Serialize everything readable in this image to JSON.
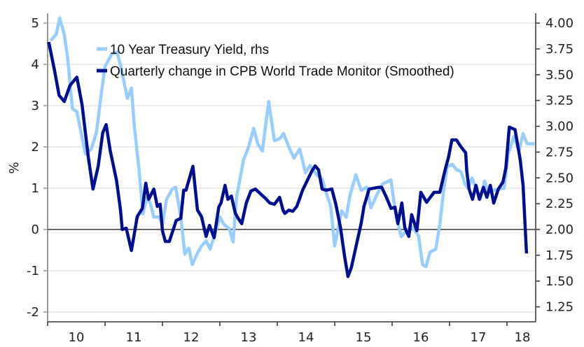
{
  "chart_data": {
    "type": "line",
    "title": "",
    "xlabel": "",
    "ylabel": "%",
    "y2label": "",
    "x_unit": "year (fractional, tick labels are 2-digit years)",
    "xlim": [
      2010.0,
      2018.5
    ],
    "ylim": [
      -2.3,
      5.2
    ],
    "y2lim": [
      1.1,
      4.1
    ],
    "x_tick_labels": [
      "10",
      "11",
      "12",
      "13",
      "14",
      "15",
      "16",
      "17",
      "18"
    ],
    "y_ticks": [
      -2,
      -1,
      0,
      1,
      2,
      3,
      4,
      5
    ],
    "y_tick_labels": [
      "-2",
      "-1",
      "0",
      "1",
      "2",
      "3",
      "4",
      "5"
    ],
    "y2_ticks": [
      1.25,
      1.5,
      1.75,
      2.0,
      2.25,
      2.5,
      2.75,
      3.0,
      3.25,
      3.5,
      3.75,
      4.0
    ],
    "y2_tick_labels": [
      "1.25",
      "1.50",
      "1.75",
      "2.00",
      "2.25",
      "2.50",
      "2.75",
      "3.00",
      "3.25",
      "3.50",
      "3.75",
      "4.00"
    ],
    "grid": true,
    "zero_line": true,
    "legend_position": "top-left",
    "series": [
      {
        "name": "10 Year Treasury Yield, rhs",
        "axis": "right",
        "color": "#99ccff",
        "x": [
          2010.05,
          2010.15,
          2010.21,
          2010.29,
          2010.35,
          2010.43,
          2010.51,
          2010.59,
          2010.66,
          2010.76,
          2010.85,
          2010.94,
          2011.0,
          2011.12,
          2011.21,
          2011.27,
          2011.39,
          2011.46,
          2011.51,
          2011.59,
          2011.66,
          2011.73,
          2011.79,
          2011.85,
          2011.95,
          2012.0,
          2012.07,
          2012.17,
          2012.23,
          2012.32,
          2012.39,
          2012.46,
          2012.52,
          2012.61,
          2012.68,
          2012.76,
          2012.83,
          2012.91,
          2013.0,
          2013.07,
          2013.16,
          2013.23,
          2013.29,
          2013.41,
          2013.5,
          2013.59,
          2013.66,
          2013.74,
          2013.85,
          2013.95,
          2014.04,
          2014.11,
          2014.2,
          2014.29,
          2014.39,
          2014.49,
          2014.57,
          2014.7,
          2014.78,
          2014.85,
          2014.93,
          2015.0,
          2015.12,
          2015.2,
          2015.27,
          2015.37,
          2015.46,
          2015.56,
          2015.63,
          2015.73,
          2015.83,
          2015.98,
          2016.06,
          2016.16,
          2016.24,
          2016.34,
          2016.46,
          2016.53,
          2016.59,
          2016.66,
          2016.76,
          2016.83,
          2016.9,
          2016.96,
          2017.05,
          2017.12,
          2017.2,
          2017.27,
          2017.32,
          2017.39,
          2017.46,
          2017.54,
          2017.61,
          2017.68,
          2017.76,
          2017.85,
          2017.95,
          2018.02,
          2018.12,
          2018.21,
          2018.28,
          2018.35,
          2018.43,
          2018.48
        ],
        "values": [
          3.83,
          3.89,
          4.05,
          3.89,
          3.66,
          3.17,
          3.14,
          2.92,
          2.73,
          2.78,
          2.94,
          3.34,
          3.58,
          3.7,
          3.72,
          3.59,
          3.27,
          3.37,
          3.0,
          2.59,
          2.15,
          2.31,
          2.25,
          2.12,
          2.12,
          2.05,
          2.29,
          2.39,
          2.41,
          2.12,
          1.76,
          1.82,
          1.66,
          1.77,
          1.84,
          1.89,
          1.81,
          1.95,
          2.12,
          2.05,
          2.01,
          1.88,
          2.31,
          2.67,
          2.8,
          2.98,
          2.83,
          2.76,
          3.24,
          2.86,
          2.88,
          2.93,
          2.8,
          2.69,
          2.78,
          2.55,
          2.62,
          2.52,
          2.49,
          2.36,
          2.22,
          1.84,
          2.18,
          2.12,
          2.34,
          2.53,
          2.38,
          2.41,
          2.21,
          2.33,
          2.44,
          2.48,
          2.15,
          1.93,
          1.98,
          2.03,
          1.94,
          1.66,
          1.64,
          1.78,
          1.81,
          2.05,
          2.39,
          2.61,
          2.63,
          2.58,
          2.56,
          2.44,
          2.4,
          2.5,
          2.4,
          2.3,
          2.47,
          2.36,
          2.38,
          2.39,
          2.4,
          2.73,
          2.9,
          2.76,
          2.93,
          2.83,
          2.83,
          2.83
        ]
      },
      {
        "name": "Quarterly change in CPB World Trade Monitor (Smoothed)",
        "axis": "left",
        "color": "#000f8f",
        "x": [
          2010.02,
          2010.12,
          2010.2,
          2010.29,
          2010.39,
          2010.51,
          2010.6,
          2010.71,
          2010.79,
          2010.88,
          2010.96,
          2011.02,
          2011.09,
          2011.2,
          2011.27,
          2011.3,
          2011.37,
          2011.46,
          2011.52,
          2011.56,
          2011.65,
          2011.71,
          2011.76,
          2011.85,
          2011.91,
          2011.96,
          2012.0,
          2012.05,
          2012.12,
          2012.2,
          2012.24,
          2012.32,
          2012.37,
          2012.41,
          2012.53,
          2012.61,
          2012.68,
          2012.76,
          2012.82,
          2012.9,
          2012.98,
          2013.02,
          2013.09,
          2013.14,
          2013.2,
          2013.27,
          2013.32,
          2013.38,
          2013.46,
          2013.54,
          2013.62,
          2013.71,
          2013.79,
          2013.87,
          2013.95,
          2014.04,
          2014.1,
          2014.13,
          2014.2,
          2014.27,
          2014.34,
          2014.44,
          2014.51,
          2014.6,
          2014.66,
          2014.72,
          2014.78,
          2014.85,
          2014.95,
          2015.02,
          2015.1,
          2015.17,
          2015.23,
          2015.29,
          2015.39,
          2015.46,
          2015.51,
          2015.6,
          2015.76,
          2015.82,
          2015.9,
          2015.98,
          2016.05,
          2016.1,
          2016.17,
          2016.22,
          2016.29,
          2016.34,
          2016.43,
          2016.5,
          2016.6,
          2016.73,
          2016.83,
          2016.93,
          2016.98,
          2017.04,
          2017.12,
          2017.2,
          2017.28,
          2017.3,
          2017.34,
          2017.4,
          2017.46,
          2017.52,
          2017.59,
          2017.65,
          2017.71,
          2017.77,
          2017.85,
          2017.93,
          2017.98,
          2018.04,
          2018.14,
          2018.23,
          2018.28,
          2018.34
        ],
        "values": [
          4.54,
          3.86,
          3.25,
          3.1,
          3.49,
          3.69,
          3.02,
          1.74,
          0.98,
          1.53,
          2.34,
          2.54,
          1.91,
          1.19,
          0.47,
          0.0,
          0.03,
          -0.51,
          -0.03,
          0.31,
          0.51,
          1.12,
          0.73,
          0.98,
          0.56,
          0.61,
          -0.03,
          -0.29,
          -0.29,
          0.05,
          0.22,
          0.27,
          0.95,
          0.95,
          1.53,
          0.47,
          0.31,
          -0.17,
          0.1,
          -0.2,
          0.54,
          0.64,
          1.07,
          0.73,
          0.81,
          0.39,
          0.27,
          0.14,
          0.64,
          0.93,
          0.98,
          0.86,
          0.76,
          0.64,
          0.61,
          0.78,
          0.47,
          0.39,
          0.47,
          0.44,
          0.56,
          0.95,
          1.15,
          1.41,
          1.54,
          1.44,
          0.98,
          0.95,
          0.98,
          0.61,
          0.05,
          -0.63,
          -1.14,
          -0.92,
          -0.29,
          0.14,
          0.56,
          0.98,
          1.02,
          1.02,
          0.78,
          0.51,
          0.54,
          0.14,
          0.64,
          0.05,
          -0.17,
          0.36,
          -0.03,
          0.9,
          0.66,
          0.9,
          0.9,
          1.49,
          1.74,
          2.17,
          2.17,
          2.0,
          1.86,
          1.41,
          0.98,
          0.73,
          1.07,
          0.73,
          1.02,
          0.78,
          1.07,
          0.64,
          0.98,
          1.15,
          1.49,
          2.48,
          2.42,
          1.69,
          1.07,
          -0.58
        ]
      }
    ]
  }
}
